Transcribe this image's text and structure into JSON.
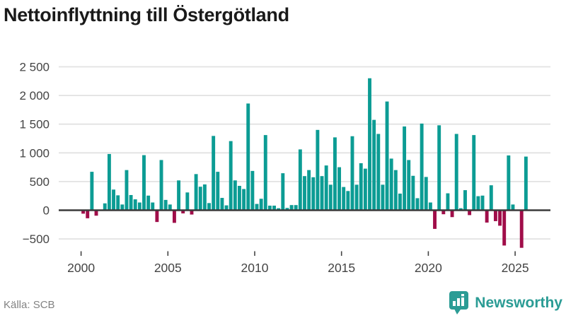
{
  "title": "Nettoinflyttning till Östergötland",
  "source": "Källa: SCB",
  "brand": {
    "name": "Newsworthy",
    "icon": "bar-chart-pin-icon",
    "color": "#2b9c95"
  },
  "colors": {
    "positive_bar": "#0c9c94",
    "negative_bar": "#a00d49",
    "zero_line": "#3a3a3a",
    "gridline": "#e2e2e2",
    "axis_text": "#444444"
  },
  "chart_data": {
    "type": "bar",
    "title": "Nettoinflyttning till Östergötland",
    "xlabel": "",
    "ylabel": "",
    "frequency": "quarterly",
    "grid": "horizontal",
    "legend": "none",
    "ylim": [
      -750,
      2650
    ],
    "y_tick_values": [
      2500,
      2000,
      1500,
      1000,
      500,
      0,
      -500
    ],
    "y_tick_labels": [
      "2 500",
      "2 000",
      "1 500",
      "1 000",
      "500",
      "0",
      "−500"
    ],
    "x_tick_years": [
      2000,
      2005,
      2010,
      2015,
      2020,
      2025
    ],
    "x_tick_labels": [
      "2000",
      "2005",
      "2010",
      "2015",
      "2020",
      "2025"
    ],
    "categories": [
      "2000Q1",
      "2000Q2",
      "2000Q3",
      "2000Q4",
      "2001Q1",
      "2001Q2",
      "2001Q3",
      "2001Q4",
      "2002Q1",
      "2002Q2",
      "2002Q3",
      "2002Q4",
      "2003Q1",
      "2003Q2",
      "2003Q3",
      "2003Q4",
      "2004Q1",
      "2004Q2",
      "2004Q3",
      "2004Q4",
      "2005Q1",
      "2005Q2",
      "2005Q3",
      "2005Q4",
      "2006Q1",
      "2006Q2",
      "2006Q3",
      "2006Q4",
      "2007Q1",
      "2007Q2",
      "2007Q3",
      "2007Q4",
      "2008Q1",
      "2008Q2",
      "2008Q3",
      "2008Q4",
      "2009Q1",
      "2009Q2",
      "2009Q3",
      "2009Q4",
      "2010Q1",
      "2010Q2",
      "2010Q3",
      "2010Q4",
      "2011Q1",
      "2011Q2",
      "2011Q3",
      "2011Q4",
      "2012Q1",
      "2012Q2",
      "2012Q3",
      "2012Q4",
      "2013Q1",
      "2013Q2",
      "2013Q3",
      "2013Q4",
      "2014Q1",
      "2014Q2",
      "2014Q3",
      "2014Q4",
      "2015Q1",
      "2015Q2",
      "2015Q3",
      "2015Q4",
      "2016Q1",
      "2016Q2",
      "2016Q3",
      "2016Q4",
      "2017Q1",
      "2017Q2",
      "2017Q3",
      "2017Q4",
      "2018Q1",
      "2018Q2",
      "2018Q3",
      "2018Q4",
      "2019Q1",
      "2019Q2",
      "2019Q3",
      "2019Q4",
      "2020Q1",
      "2020Q2",
      "2020Q3",
      "2020Q4",
      "2021Q1",
      "2021Q2",
      "2021Q3",
      "2021Q4",
      "2022Q1",
      "2022Q2",
      "2022Q3",
      "2022Q4",
      "2023Q1",
      "2023Q2",
      "2023Q3",
      "2023Q4",
      "2024Q1",
      "2024Q2",
      "2024Q3",
      "2024Q4",
      "2025Q1",
      "2025Q2",
      "2025Q3"
    ],
    "values": [
      -60,
      -140,
      670,
      -95,
      0,
      120,
      980,
      360,
      260,
      100,
      700,
      265,
      190,
      135,
      960,
      255,
      135,
      -205,
      875,
      180,
      100,
      -220,
      520,
      -55,
      310,
      -75,
      630,
      410,
      450,
      125,
      1295,
      670,
      215,
      85,
      1205,
      520,
      425,
      370,
      1860,
      685,
      110,
      200,
      1310,
      80,
      80,
      35,
      645,
      40,
      90,
      90,
      1060,
      595,
      700,
      575,
      1400,
      595,
      780,
      445,
      1270,
      750,
      405,
      335,
      1290,
      445,
      820,
      725,
      2300,
      1575,
      1330,
      445,
      1895,
      900,
      700,
      290,
      1460,
      875,
      600,
      210,
      1510,
      580,
      135,
      -325,
      1480,
      -70,
      295,
      -120,
      1330,
      35,
      350,
      -85,
      1310,
      245,
      255,
      -215,
      435,
      -190,
      -270,
      -615,
      955,
      100,
      0,
      -655,
      935
    ]
  }
}
